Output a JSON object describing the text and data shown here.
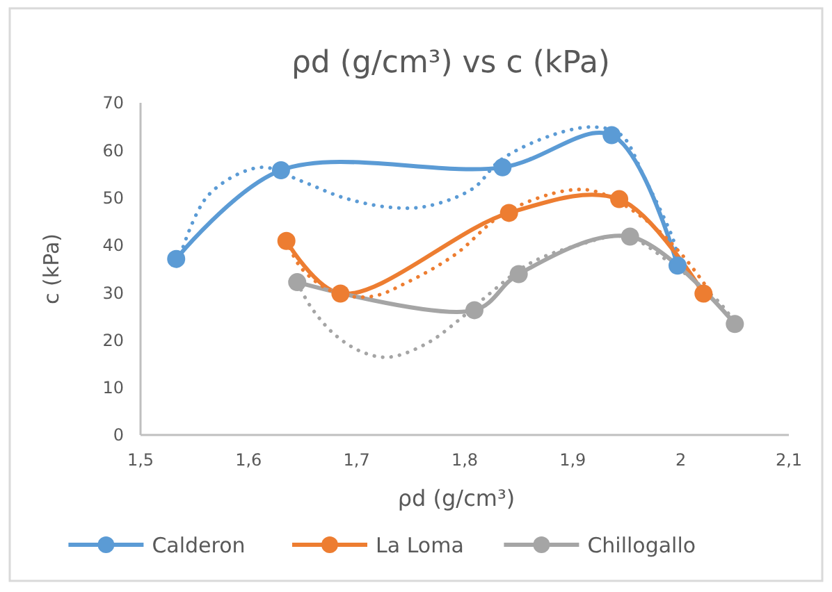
{
  "chart_data": {
    "type": "line",
    "title": "ρd (g/cm³) vs c (kPa)",
    "xlabel": "ρd (g/cm³)",
    "ylabel": "c (kPa)",
    "xlim": [
      1.5,
      2.1
    ],
    "xticks": [
      {
        "value": 1.5,
        "label": "1,5"
      },
      {
        "value": 1.6,
        "label": "1,6"
      },
      {
        "value": 1.7,
        "label": "1,7"
      },
      {
        "value": 1.8,
        "label": "1,8"
      },
      {
        "value": 1.9,
        "label": "1,9"
      },
      2,
      {
        "value": 2.1,
        "label": "2,1"
      }
    ],
    "ylim": [
      0,
      70
    ],
    "yticks": [
      0,
      10,
      20,
      30,
      40,
      50,
      60,
      70
    ],
    "grid": false,
    "legend": "bottom",
    "marker": "circle",
    "line_style": "solid",
    "series": [
      {
        "name": "Calderon",
        "color": "#5b9bd5",
        "x": [
          1.533,
          1.63,
          1.835,
          1.936,
          1.997
        ],
        "values": [
          37.1,
          55.8,
          56.4,
          63.2,
          35.7
        ]
      },
      {
        "name": "La Loma",
        "color": "#ed7d31",
        "x": [
          1.635,
          1.685,
          1.841,
          1.943,
          2.021
        ],
        "values": [
          40.9,
          29.8,
          46.8,
          49.7,
          29.8
        ]
      },
      {
        "name": "Chillogallo",
        "color": "#a5a5a5",
        "x": [
          1.645,
          1.809,
          1.85,
          1.953,
          2.05
        ],
        "values": [
          32.2,
          26.3,
          33.9,
          41.8,
          23.4
        ]
      },
      {
        "type": "line",
        "marker": "none",
        "line_style": "dotted",
        "color": "#5b9bd5",
        "x": [
          1.537,
          1.563,
          1.611,
          1.649,
          1.688,
          1.73,
          1.765,
          1.808,
          1.833,
          1.881,
          1.92,
          1.945,
          1.966,
          1.992,
          1.997
        ],
        "values": [
          38,
          50.6,
          56.4,
          53.5,
          50,
          48,
          48.2,
          52,
          57.9,
          63.2,
          64.9,
          63.2,
          54.4,
          41.8,
          38
        ]
      },
      {
        "type": "line",
        "marker": "none",
        "line_style": "dotted",
        "color": "#ed7d31",
        "x": [
          1.635,
          1.649,
          1.679,
          1.714,
          1.747,
          1.791,
          1.837,
          1.894,
          1.923,
          1.966,
          2.001,
          2.03
        ],
        "values": [
          41,
          35.1,
          30.1,
          29.2,
          32.2,
          38,
          46.8,
          51.5,
          51.2,
          45.6,
          38,
          29.2
        ]
      },
      {
        "type": "line",
        "marker": "none",
        "line_style": "dotted",
        "color": "#a5a5a5",
        "x": [
          1.645,
          1.657,
          1.679,
          1.705,
          1.73,
          1.765,
          1.795,
          1.82,
          1.859,
          1.902,
          1.949,
          1.992,
          2.035,
          2.048
        ],
        "values": [
          32.2,
          27.2,
          21.3,
          17.5,
          16.4,
          19.3,
          24.3,
          29.2,
          36,
          39.8,
          41.8,
          36,
          28.1,
          24.3
        ]
      }
    ]
  }
}
